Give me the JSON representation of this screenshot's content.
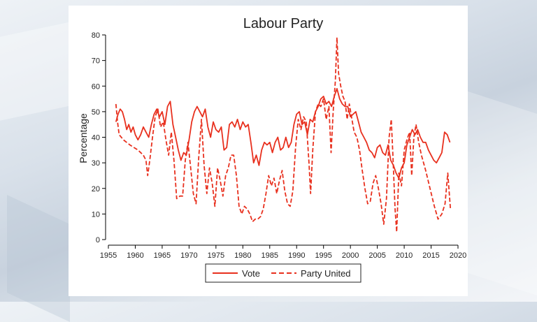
{
  "chart_data": {
    "type": "line",
    "title": "Labour Party",
    "xlabel": "",
    "ylabel": "Percentage",
    "xlim": [
      1955,
      2020
    ],
    "ylim": [
      0,
      80
    ],
    "x_ticks": [
      1955,
      1960,
      1965,
      1970,
      1975,
      1980,
      1985,
      1990,
      1995,
      2000,
      2005,
      2010,
      2015,
      2020
    ],
    "y_ticks": [
      0,
      10,
      20,
      30,
      40,
      50,
      60,
      70,
      80
    ],
    "grid": false,
    "legend_position": "bottom",
    "colors": {
      "line": "#e8301e",
      "axis": "#000000",
      "text": "#222222"
    },
    "series": [
      {
        "name": "Vote",
        "style": "solid",
        "points": [
          [
            1956.4,
            46
          ],
          [
            1956.8,
            49
          ],
          [
            1957.2,
            51
          ],
          [
            1957.6,
            50
          ],
          [
            1958.0,
            47
          ],
          [
            1958.4,
            43
          ],
          [
            1958.8,
            45
          ],
          [
            1959.2,
            42
          ],
          [
            1959.6,
            44
          ],
          [
            1960.0,
            41
          ],
          [
            1960.5,
            39
          ],
          [
            1961.0,
            41
          ],
          [
            1961.5,
            44
          ],
          [
            1962.0,
            42
          ],
          [
            1962.5,
            40
          ],
          [
            1963.0,
            45
          ],
          [
            1963.5,
            49
          ],
          [
            1964.0,
            51
          ],
          [
            1964.5,
            48
          ],
          [
            1965.0,
            50
          ],
          [
            1965.5,
            45
          ],
          [
            1966.0,
            52
          ],
          [
            1966.5,
            54
          ],
          [
            1967.0,
            45
          ],
          [
            1967.5,
            40
          ],
          [
            1968.0,
            35
          ],
          [
            1968.5,
            31
          ],
          [
            1969.0,
            34
          ],
          [
            1969.5,
            33
          ],
          [
            1970.0,
            39
          ],
          [
            1970.5,
            46
          ],
          [
            1971.0,
            50
          ],
          [
            1971.5,
            52
          ],
          [
            1972.0,
            50
          ],
          [
            1972.5,
            48
          ],
          [
            1973.0,
            51
          ],
          [
            1973.5,
            44
          ],
          [
            1974.0,
            40
          ],
          [
            1974.5,
            46
          ],
          [
            1975.0,
            43
          ],
          [
            1975.5,
            42
          ],
          [
            1976.0,
            44
          ],
          [
            1976.5,
            35
          ],
          [
            1977.0,
            36
          ],
          [
            1977.5,
            45
          ],
          [
            1978.0,
            46
          ],
          [
            1978.5,
            44
          ],
          [
            1979.0,
            47
          ],
          [
            1979.5,
            43
          ],
          [
            1980.0,
            46
          ],
          [
            1980.5,
            44
          ],
          [
            1981.0,
            45
          ],
          [
            1981.5,
            38
          ],
          [
            1982.0,
            30
          ],
          [
            1982.5,
            33
          ],
          [
            1983.0,
            29
          ],
          [
            1983.5,
            35
          ],
          [
            1984.0,
            38
          ],
          [
            1984.5,
            37
          ],
          [
            1985.0,
            38
          ],
          [
            1985.5,
            34
          ],
          [
            1986.0,
            38
          ],
          [
            1986.5,
            40
          ],
          [
            1987.0,
            35
          ],
          [
            1987.5,
            36
          ],
          [
            1988.0,
            40
          ],
          [
            1988.5,
            36
          ],
          [
            1989.0,
            38
          ],
          [
            1989.5,
            45
          ],
          [
            1990.0,
            49
          ],
          [
            1990.5,
            50
          ],
          [
            1991.0,
            45
          ],
          [
            1991.5,
            46
          ],
          [
            1992.0,
            41
          ],
          [
            1992.5,
            47
          ],
          [
            1993.0,
            46
          ],
          [
            1993.5,
            50
          ],
          [
            1994.0,
            52
          ],
          [
            1994.5,
            55
          ],
          [
            1995.0,
            56
          ],
          [
            1995.5,
            53
          ],
          [
            1996.0,
            54
          ],
          [
            1996.5,
            52
          ],
          [
            1997.0,
            56
          ],
          [
            1997.5,
            59
          ],
          [
            1998.0,
            55
          ],
          [
            1998.5,
            53
          ],
          [
            1999.0,
            52
          ],
          [
            1999.5,
            52
          ],
          [
            2000.0,
            48
          ],
          [
            2000.5,
            49
          ],
          [
            2001.0,
            50
          ],
          [
            2001.5,
            46
          ],
          [
            2002.0,
            42
          ],
          [
            2002.5,
            40
          ],
          [
            2003.0,
            38
          ],
          [
            2003.5,
            35
          ],
          [
            2004.0,
            34
          ],
          [
            2004.5,
            32
          ],
          [
            2005.0,
            36
          ],
          [
            2005.5,
            37
          ],
          [
            2006.0,
            34
          ],
          [
            2006.5,
            33
          ],
          [
            2007.0,
            37
          ],
          [
            2007.5,
            31
          ],
          [
            2008.0,
            29
          ],
          [
            2008.5,
            26
          ],
          [
            2009.0,
            24
          ],
          [
            2009.5,
            28
          ],
          [
            2010.0,
            30
          ],
          [
            2010.5,
            37
          ],
          [
            2011.0,
            40
          ],
          [
            2011.5,
            43
          ],
          [
            2012.0,
            41
          ],
          [
            2012.5,
            43
          ],
          [
            2013.0,
            40
          ],
          [
            2013.5,
            38
          ],
          [
            2014.0,
            38
          ],
          [
            2014.5,
            35
          ],
          [
            2015.0,
            33
          ],
          [
            2015.5,
            31
          ],
          [
            2016.0,
            30
          ],
          [
            2016.5,
            32
          ],
          [
            2017.0,
            34
          ],
          [
            2017.5,
            42
          ],
          [
            2018.0,
            41
          ],
          [
            2018.5,
            38
          ]
        ]
      },
      {
        "name": "Party United",
        "style": "dashed",
        "points": [
          [
            1956.4,
            53
          ],
          [
            1956.7,
            46
          ],
          [
            1957.0,
            41
          ],
          [
            1957.8,
            39
          ],
          [
            1959.0,
            37
          ],
          [
            1960.5,
            35
          ],
          [
            1961.5,
            33
          ],
          [
            1962.0,
            31
          ],
          [
            1962.3,
            25
          ],
          [
            1962.7,
            31
          ],
          [
            1963.2,
            40
          ],
          [
            1963.7,
            48
          ],
          [
            1964.2,
            51
          ],
          [
            1964.7,
            44
          ],
          [
            1965.2,
            46
          ],
          [
            1965.7,
            39
          ],
          [
            1966.2,
            33
          ],
          [
            1966.7,
            42
          ],
          [
            1967.2,
            31
          ],
          [
            1967.7,
            16
          ],
          [
            1968.3,
            17
          ],
          [
            1968.8,
            17
          ],
          [
            1969.3,
            31
          ],
          [
            1969.8,
            38
          ],
          [
            1970.3,
            28
          ],
          [
            1970.8,
            18
          ],
          [
            1971.3,
            14
          ],
          [
            1971.8,
            32
          ],
          [
            1972.3,
            47
          ],
          [
            1972.8,
            29
          ],
          [
            1973.3,
            18
          ],
          [
            1973.8,
            28
          ],
          [
            1974.3,
            22
          ],
          [
            1974.8,
            13
          ],
          [
            1975.3,
            28
          ],
          [
            1975.8,
            23
          ],
          [
            1976.3,
            17
          ],
          [
            1976.8,
            25
          ],
          [
            1977.3,
            28
          ],
          [
            1977.8,
            33
          ],
          [
            1978.3,
            33
          ],
          [
            1978.8,
            25
          ],
          [
            1979.3,
            13
          ],
          [
            1979.8,
            10
          ],
          [
            1980.3,
            13
          ],
          [
            1980.8,
            12
          ],
          [
            1981.3,
            10
          ],
          [
            1981.8,
            7
          ],
          [
            1982.3,
            8
          ],
          [
            1982.8,
            8
          ],
          [
            1983.3,
            9
          ],
          [
            1983.8,
            12
          ],
          [
            1984.3,
            18
          ],
          [
            1984.8,
            25
          ],
          [
            1985.3,
            21
          ],
          [
            1985.8,
            24
          ],
          [
            1986.3,
            18
          ],
          [
            1986.8,
            23
          ],
          [
            1987.3,
            27
          ],
          [
            1987.8,
            19
          ],
          [
            1988.3,
            14
          ],
          [
            1988.8,
            13
          ],
          [
            1989.3,
            19
          ],
          [
            1989.8,
            36
          ],
          [
            1990.3,
            47
          ],
          [
            1990.8,
            43
          ],
          [
            1991.3,
            48
          ],
          [
            1991.8,
            46
          ],
          [
            1992.3,
            30
          ],
          [
            1992.6,
            18
          ],
          [
            1993.0,
            35
          ],
          [
            1993.5,
            50
          ],
          [
            1994.0,
            53
          ],
          [
            1994.5,
            52
          ],
          [
            1995.0,
            55
          ],
          [
            1995.5,
            47
          ],
          [
            1996.0,
            52
          ],
          [
            1996.4,
            34
          ],
          [
            1996.8,
            50
          ],
          [
            1997.2,
            62
          ],
          [
            1997.5,
            79
          ],
          [
            1997.8,
            65
          ],
          [
            1998.2,
            60
          ],
          [
            1998.6,
            56
          ],
          [
            1999.0,
            54
          ],
          [
            1999.4,
            47
          ],
          [
            1999.8,
            53
          ],
          [
            2000.2,
            48
          ],
          [
            2000.7,
            42
          ],
          [
            2001.2,
            40
          ],
          [
            2001.7,
            35
          ],
          [
            2002.2,
            27
          ],
          [
            2002.7,
            20
          ],
          [
            2003.2,
            14
          ],
          [
            2003.7,
            15
          ],
          [
            2004.2,
            22
          ],
          [
            2004.7,
            25
          ],
          [
            2005.2,
            20
          ],
          [
            2005.7,
            14
          ],
          [
            2006.2,
            6
          ],
          [
            2006.7,
            16
          ],
          [
            2007.2,
            40
          ],
          [
            2007.6,
            47
          ],
          [
            2007.9,
            33
          ],
          [
            2008.3,
            12
          ],
          [
            2008.6,
            3
          ],
          [
            2009.0,
            26
          ],
          [
            2009.5,
            21
          ],
          [
            2010.0,
            35
          ],
          [
            2010.5,
            39
          ],
          [
            2011.0,
            42
          ],
          [
            2011.4,
            25
          ],
          [
            2011.8,
            40
          ],
          [
            2012.2,
            45
          ],
          [
            2012.7,
            38
          ],
          [
            2013.2,
            33
          ],
          [
            2014.0,
            27
          ],
          [
            2014.8,
            20
          ],
          [
            2015.6,
            13
          ],
          [
            2016.3,
            8
          ],
          [
            2017.0,
            10
          ],
          [
            2017.6,
            14
          ],
          [
            2018.1,
            26
          ],
          [
            2018.6,
            12
          ]
        ]
      }
    ]
  }
}
